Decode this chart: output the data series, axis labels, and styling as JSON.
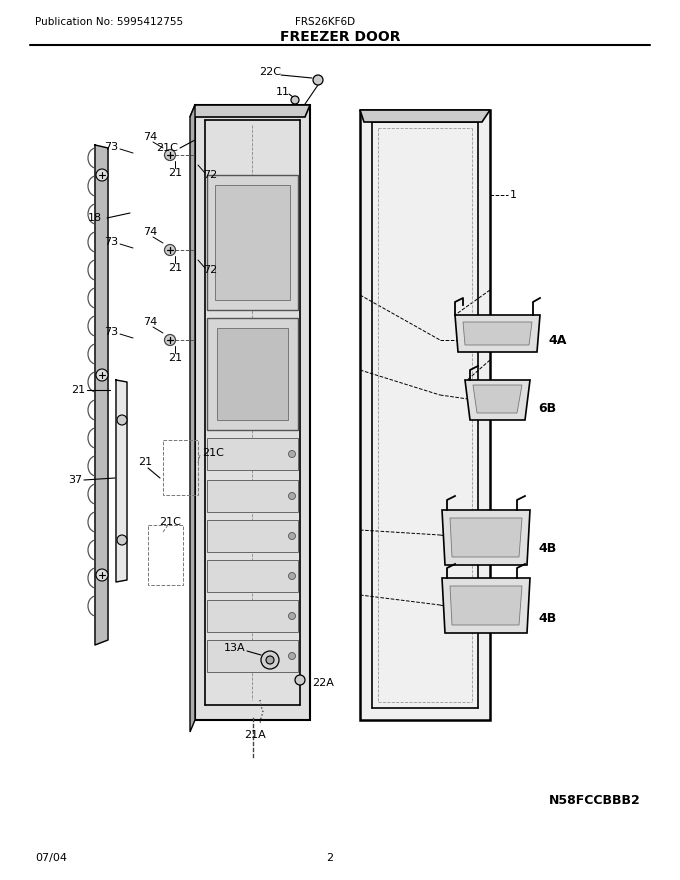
{
  "title": "FREEZER DOOR",
  "pub_no": "Publication No: 5995412755",
  "model": "FRS26KF6D",
  "date": "07/04",
  "page": "2",
  "diagram_id": "N58FCCBBB2",
  "bg_color": "#ffffff",
  "lc": "#000000",
  "tc": "#000000",
  "gray1": "#cccccc",
  "gray2": "#e8e8e8",
  "gray3": "#bbbbbb",
  "gray4": "#999999"
}
